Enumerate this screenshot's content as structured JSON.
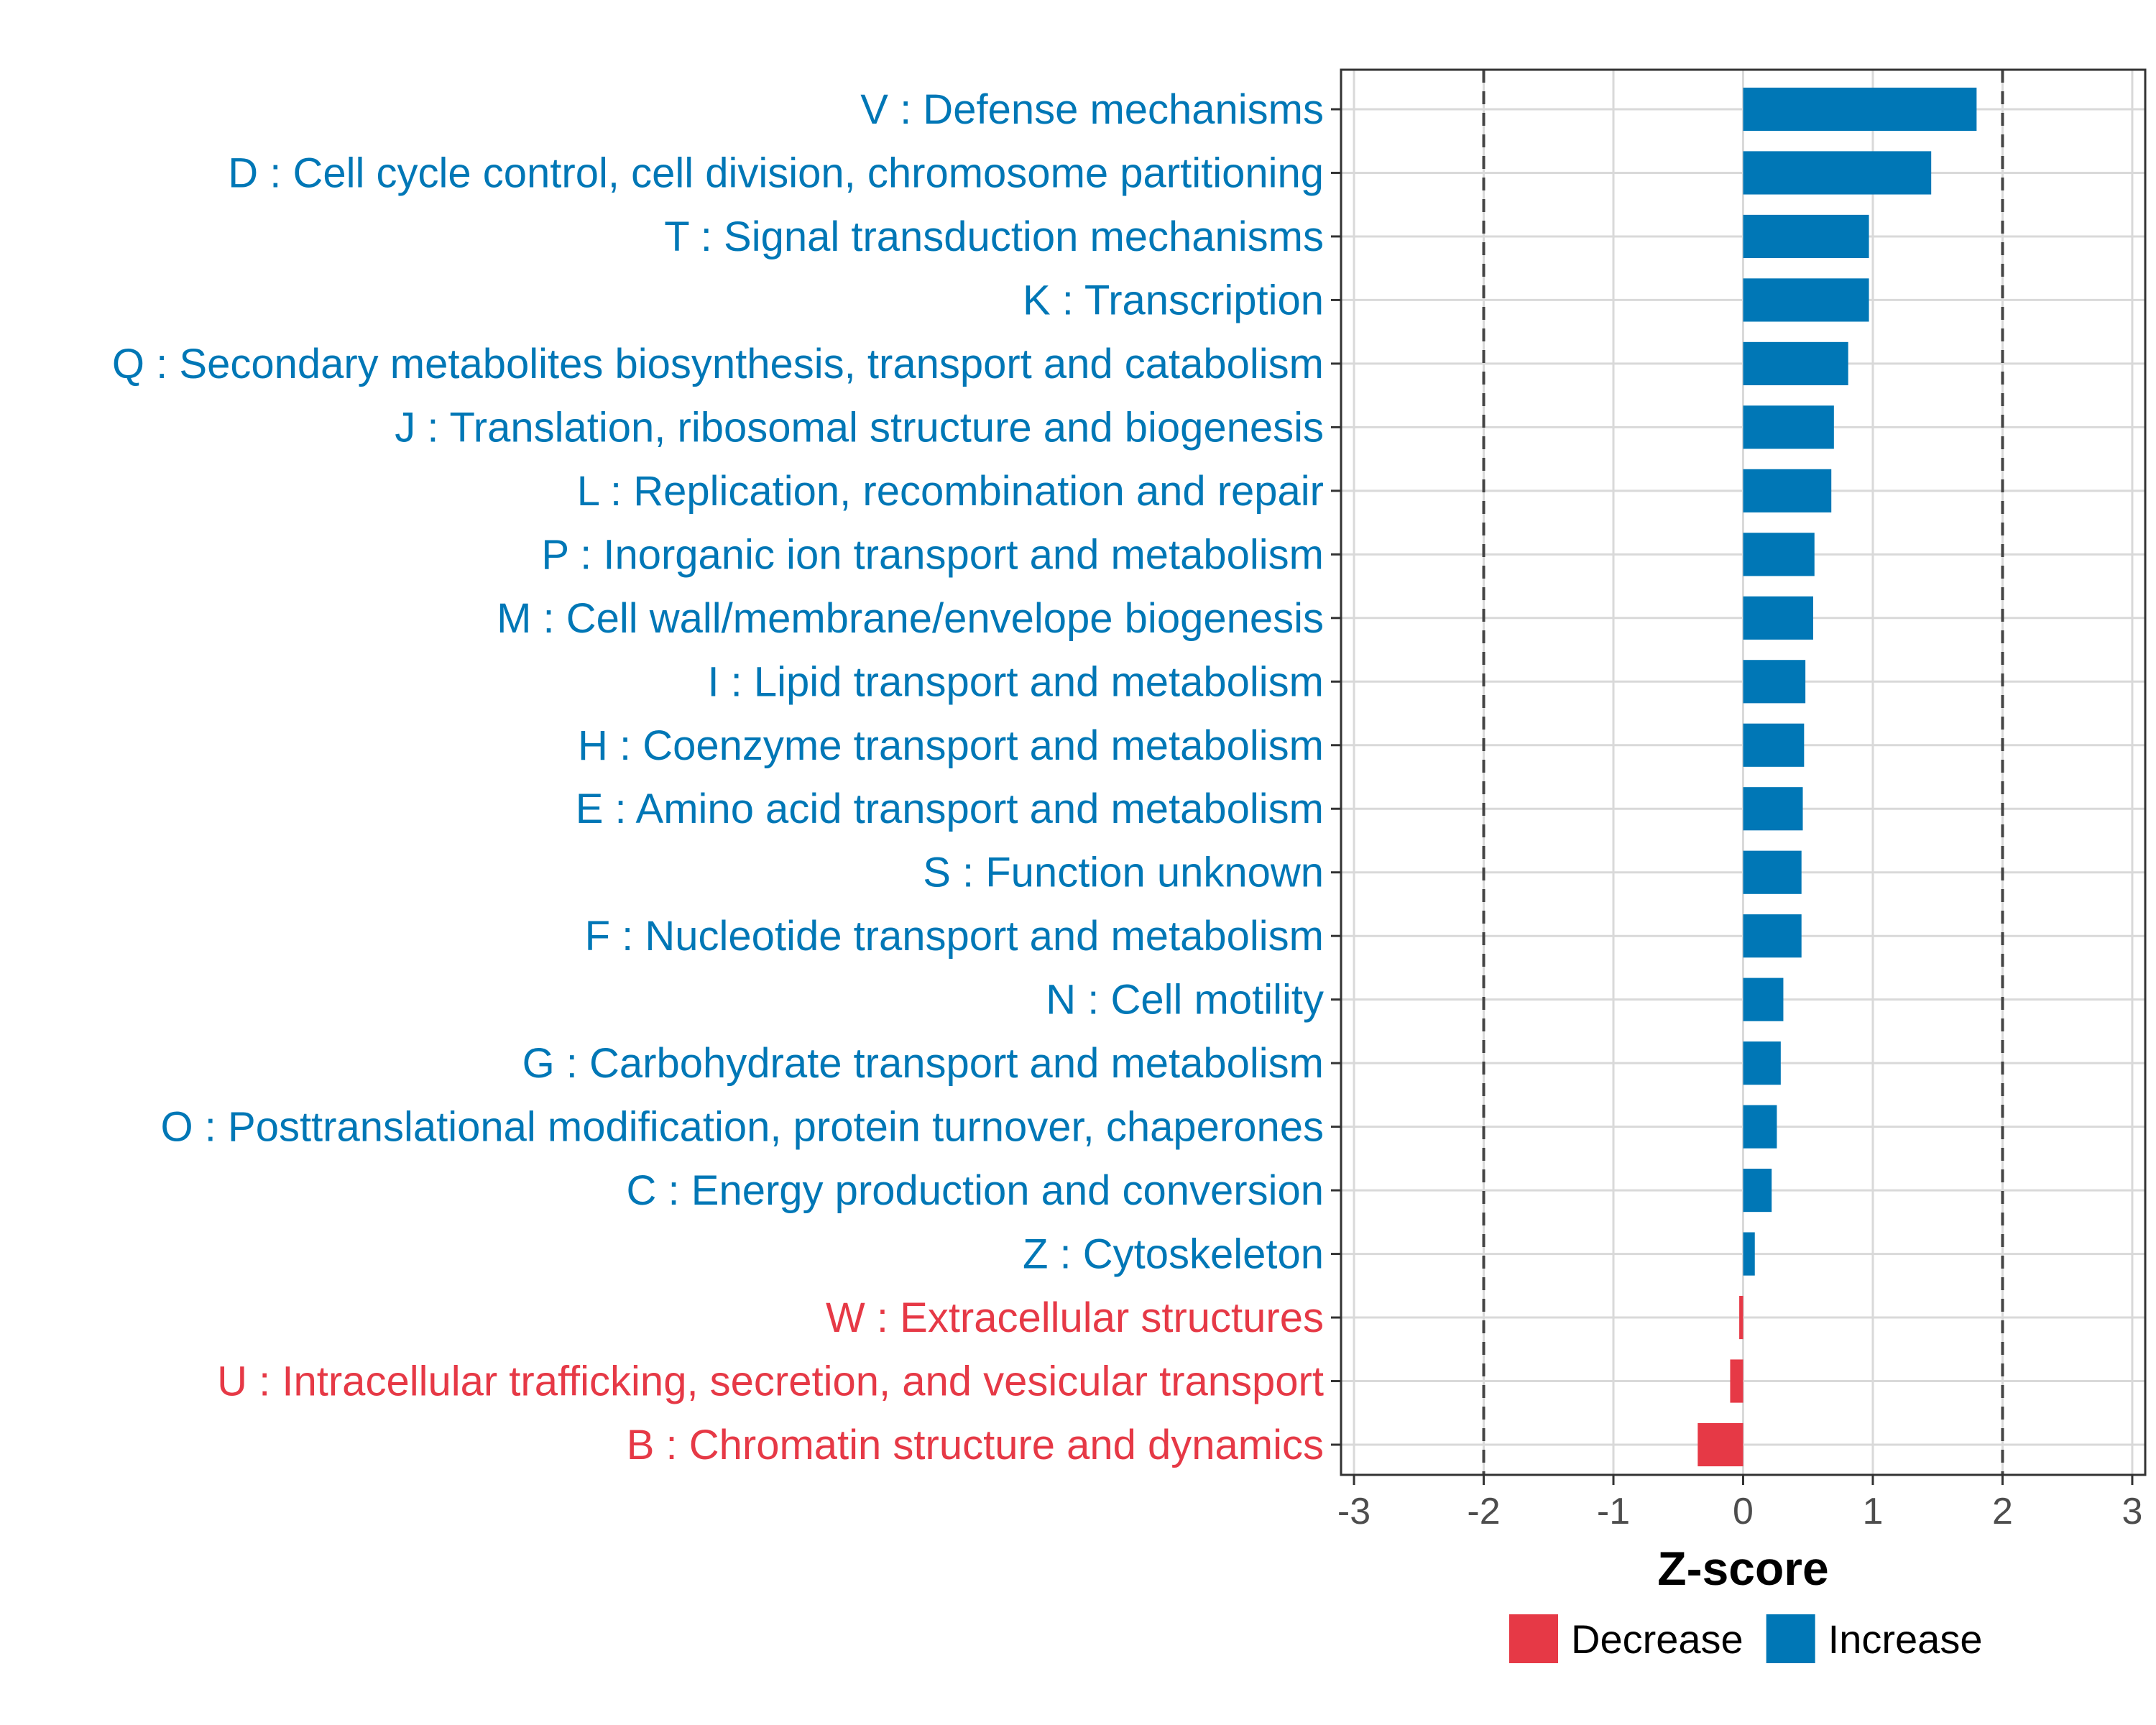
{
  "chart_data": {
    "type": "bar",
    "orientation": "horizontal",
    "xlabel": "Z-score",
    "xlim": [
      -3.1,
      3.1
    ],
    "xticks": [
      -3,
      -2,
      -1,
      0,
      1,
      2,
      3
    ],
    "xtick_labels": [
      "-3",
      "-2",
      "-1",
      "0",
      "1",
      "2",
      "3"
    ],
    "reference_lines": [
      -2,
      2
    ],
    "grid": true,
    "legend_position": "bottom",
    "categories": [
      "V : Defense mechanisms",
      "D : Cell cycle control, cell division, chromosome partitioning",
      "T : Signal transduction mechanisms",
      "K : Transcription",
      "Q : Secondary metabolites biosynthesis, transport and catabolism",
      "J : Translation, ribosomal structure and biogenesis",
      "L : Replication, recombination and repair",
      "P : Inorganic ion transport and metabolism",
      "M : Cell wall/membrane/envelope biogenesis",
      "I : Lipid transport and metabolism",
      "H : Coenzyme transport and metabolism",
      "E : Amino acid transport and metabolism",
      "S : Function unknown",
      "F : Nucleotide transport and metabolism",
      "N : Cell motility",
      "G : Carbohydrate transport and metabolism",
      "O : Posttranslational modification, protein turnover, chaperones",
      "C : Energy production and conversion",
      "Z : Cytoskeleton",
      "W : Extracellular structures",
      "U : Intracellular trafficking, secretion, and vesicular transport",
      "B : Chromatin structure and dynamics"
    ],
    "values": [
      1.8,
      1.45,
      0.97,
      0.97,
      0.81,
      0.7,
      0.68,
      0.55,
      0.54,
      0.48,
      0.47,
      0.46,
      0.45,
      0.45,
      0.31,
      0.29,
      0.26,
      0.22,
      0.09,
      -0.03,
      -0.1,
      -0.35
    ],
    "series": [
      {
        "name": "Decrease",
        "color": "#e63946"
      },
      {
        "name": "Increase",
        "color": "#0077b6"
      }
    ]
  },
  "colors": {
    "increase": "#0077b6",
    "decrease": "#e63946",
    "grid": "#d9d9d9",
    "axis": "#333333",
    "tick_text": "#4d4d4d"
  },
  "legend": {
    "items": [
      {
        "label": "Decrease",
        "color": "#e63946"
      },
      {
        "label": "Increase",
        "color": "#0077b6"
      }
    ]
  }
}
